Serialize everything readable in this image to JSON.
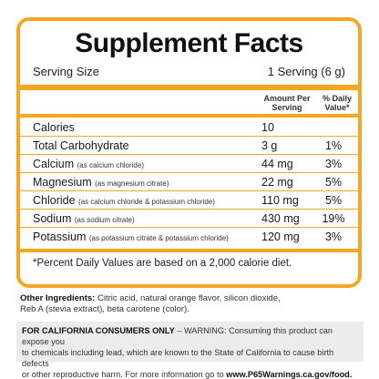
{
  "panel": {
    "title": "Supplement Facts",
    "serving_label": "Serving Size",
    "serving_value": "1 Serving (6 g)",
    "header_amount": "Amount Per Serving",
    "header_dv": "% Daily Value*",
    "rows": [
      {
        "name": "Calories",
        "note": "",
        "amount": "10",
        "dv": ""
      },
      {
        "name": "Total Carbohydrate",
        "note": "",
        "amount": "3 g",
        "dv": "1%"
      },
      {
        "name": "Calcium",
        "note": "(as calcium chloride)",
        "amount": "44 mg",
        "dv": "3%"
      },
      {
        "name": "Magnesium",
        "note": "(as magnesium citrate)",
        "amount": "22 mg",
        "dv": "5%"
      },
      {
        "name": "Chloride",
        "note": "(as calcium chloride & potassium chloride)",
        "amount": "110 mg",
        "dv": "5%"
      },
      {
        "name": "Sodium",
        "note": "(as sodium citrate)",
        "amount": "430 mg",
        "dv": "19%"
      },
      {
        "name": "Potassium",
        "note": "(as potassium citrate & potassium chloride)",
        "amount": "120 mg",
        "dv": "3%"
      }
    ],
    "footnote": "*Percent Daily Values are based on a 2,000 calorie diet."
  },
  "ingredients": {
    "label": "Other Ingredients:",
    "line1": " Citric acid, natural orange flavor, silicon dioxide,",
    "line2": "Reb A (stevia extract), beta carotene (color)."
  },
  "warning": {
    "label": "FOR CALIFORNIA CONSUMERS ONLY",
    "line1": " – WARNING: Consuming this product can expose you",
    "line2": "to chemicals including lead, which are known to the State of California to cause birth defects",
    "line3": "or other reproductive harm. For more information go to ",
    "link": "www.P65Warnings.ca.gov/food."
  },
  "colors": {
    "accent": "#f5a623",
    "warning_bg": "#ececec"
  }
}
